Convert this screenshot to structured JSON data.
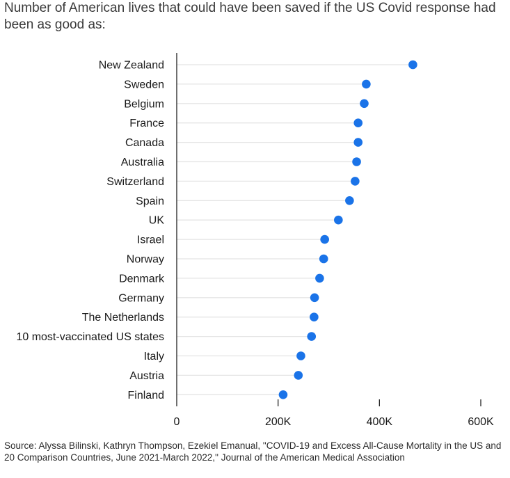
{
  "chart_data": {
    "type": "scatter",
    "title": "Number of American lives that could have been saved if the US Covid response had been as good as:",
    "categories": [
      "New Zealand",
      "Sweden",
      "Belgium",
      "France",
      "Canada",
      "Australia",
      "Switzerland",
      "Spain",
      "UK",
      "Israel",
      "Norway",
      "Denmark",
      "Germany",
      "The Netherlands",
      "10 most-vaccinated US states",
      "Italy",
      "Austria",
      "Finland"
    ],
    "values": [
      466000,
      374000,
      370000,
      358000,
      358000,
      355000,
      352000,
      341000,
      319000,
      292000,
      290000,
      282000,
      272000,
      271000,
      266000,
      245000,
      240000,
      210000
    ],
    "xlim": [
      0,
      600000
    ],
    "xticks": [
      0,
      200000,
      400000,
      600000
    ],
    "xtick_labels": [
      "0",
      "200K",
      "400K",
      "600K"
    ],
    "xlabel": "",
    "ylabel": "",
    "colors": {
      "dot": "#1a73e8",
      "axis": "#222222",
      "guide": "#e4e4e4",
      "label": "#1a1a1a"
    }
  },
  "source": "Source: Alyssa Bilinski, Kathryn Thompson, Ezekiel Emanual, \"COVID-19 and Excess All-Cause Mortality in the US and 20 Comparison Countries, June 2021-March 2022,\" Journal of the American Medical Association"
}
